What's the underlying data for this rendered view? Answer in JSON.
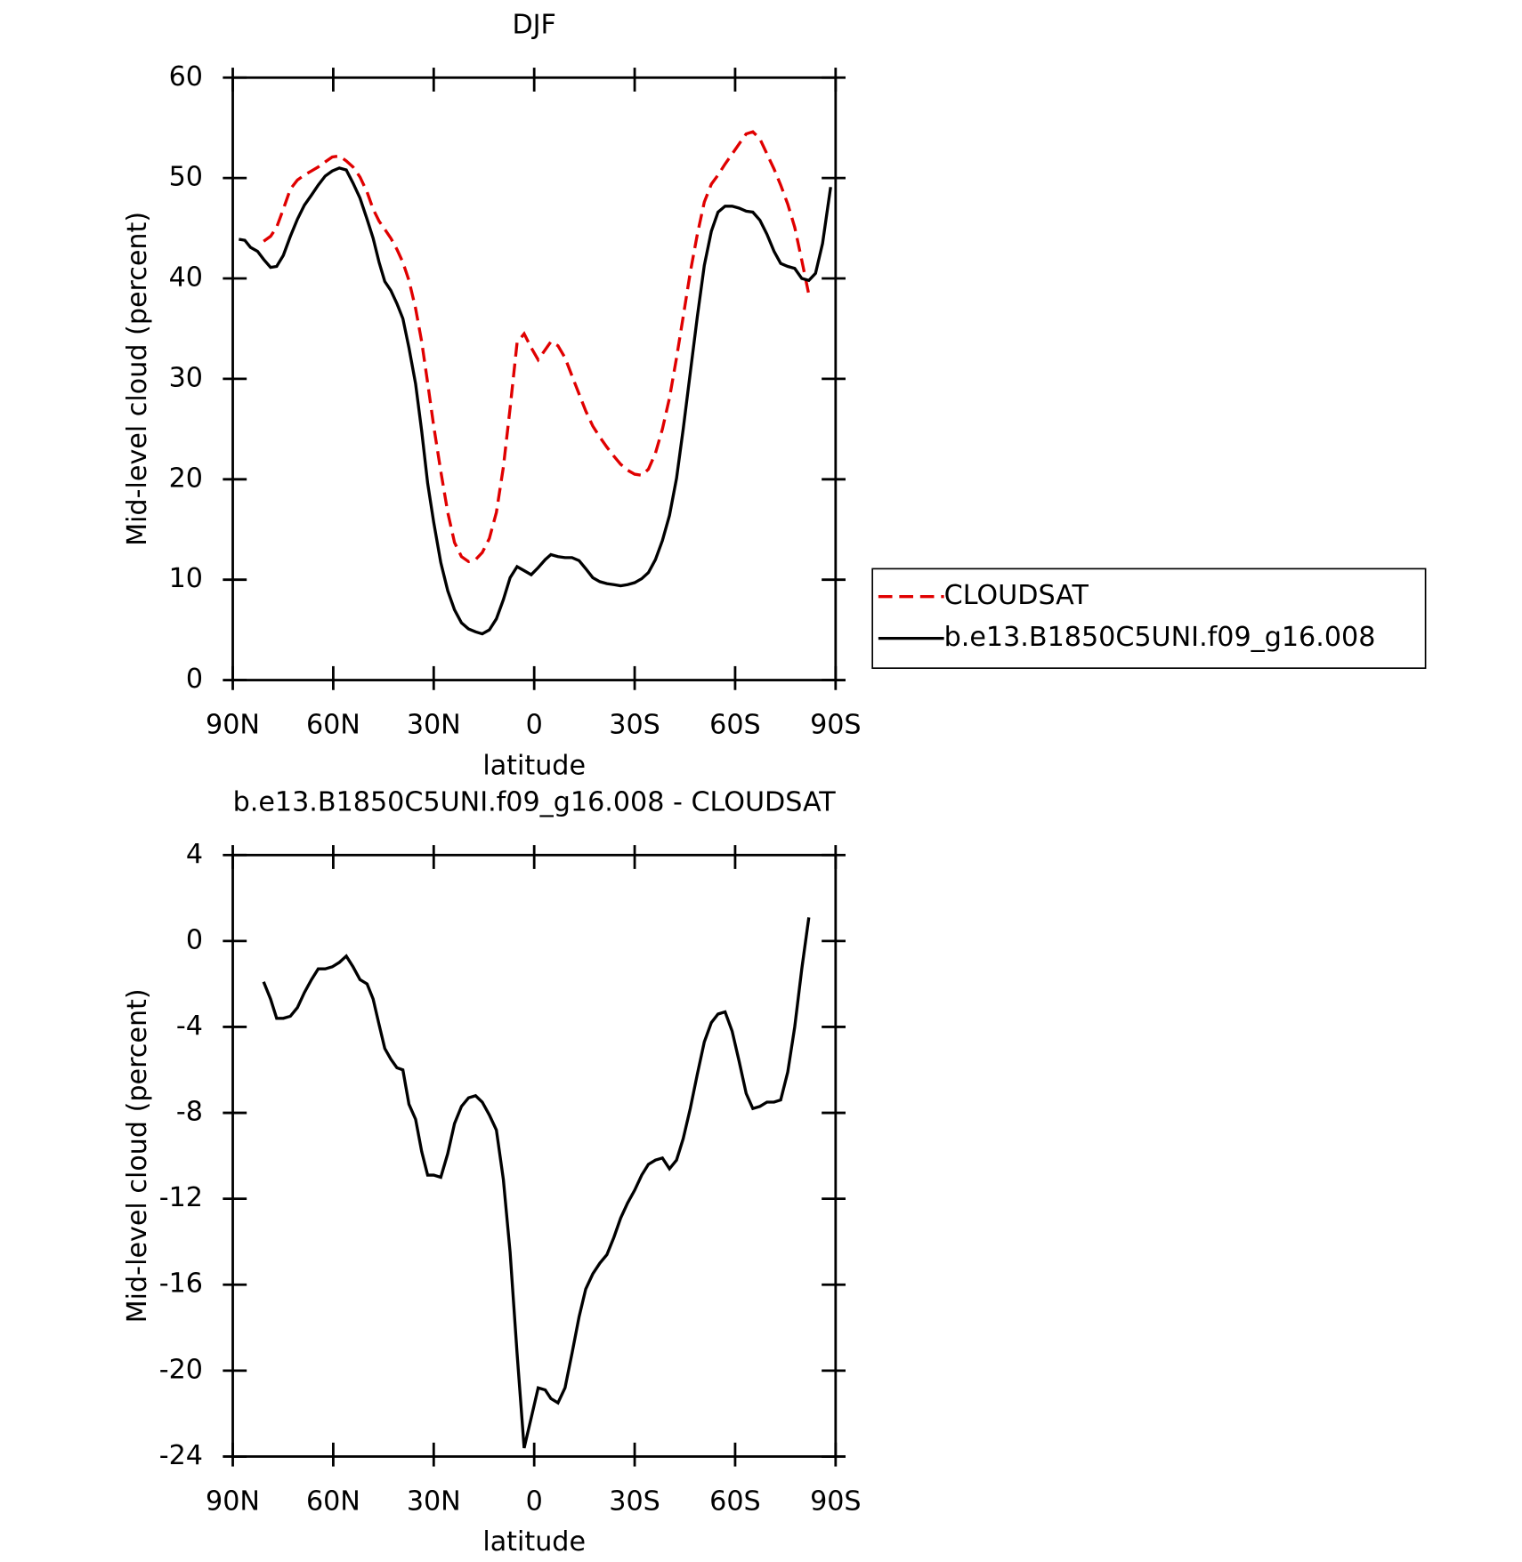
{
  "chart_data": [
    {
      "type": "line",
      "title": "DJF",
      "xlabel": "latitude",
      "ylabel": "Mid-level cloud (percent)",
      "x": [
        88.2,
        86.4,
        84.7,
        82.6,
        80.8,
        78.7,
        76.9,
        74.9,
        72.8,
        70.7,
        68.6,
        66.5,
        64.5,
        62.4,
        60.3,
        58.2,
        56.1,
        54.1,
        52.0,
        49.9,
        48.1,
        46.3,
        44.6,
        42.8,
        41.0,
        39.2,
        37.4,
        35.4,
        33.6,
        31.8,
        30.0,
        27.9,
        25.8,
        23.8,
        21.7,
        19.6,
        17.5,
        15.5,
        13.4,
        11.3,
        9.2,
        7.2,
        5.1,
        3.0,
        0.9,
        -1.2,
        -3.3,
        -5.0,
        -7.1,
        -9.2,
        -11.3,
        -13.4,
        -15.4,
        -17.5,
        -19.6,
        -21.7,
        -23.8,
        -25.8,
        -27.9,
        -30.0,
        -32.1,
        -34.1,
        -36.2,
        -38.3,
        -40.4,
        -42.5,
        -44.5,
        -46.6,
        -48.7,
        -50.8,
        -52.9,
        -54.9,
        -57.0,
        -59.1,
        -61.2,
        -63.3,
        -65.3,
        -67.4,
        -69.5,
        -71.6,
        -73.6,
        -75.7,
        -77.8,
        -79.9,
        -82.0,
        -84.0,
        -86.1,
        -88.5
      ],
      "series": [
        {
          "name": "CLOUDSAT",
          "color": "#e00000",
          "dash": true,
          "values": [
            null,
            null,
            null,
            null,
            43.7,
            44.2,
            45.1,
            46.9,
            48.9,
            49.8,
            50.3,
            50.7,
            51.1,
            51.6,
            52.1,
            52.2,
            51.7,
            51.1,
            50.1,
            48.6,
            46.9,
            45.7,
            44.9,
            44.0,
            42.9,
            41.6,
            39.8,
            37.0,
            33.7,
            29.6,
            25.3,
            20.8,
            16.7,
            13.7,
            12.3,
            11.8,
            12.0,
            12.7,
            14.1,
            16.7,
            21.2,
            27.1,
            33.6,
            34.5,
            33.1,
            31.9,
            32.9,
            33.7,
            33.3,
            32.1,
            30.3,
            28.5,
            26.8,
            25.3,
            24.2,
            23.2,
            22.3,
            21.5,
            20.9,
            20.5,
            20.4,
            21.0,
            22.6,
            25.0,
            28.1,
            32.1,
            36.2,
            40.6,
            44.4,
            47.6,
            49.4,
            50.3,
            51.4,
            52.4,
            53.4,
            54.4,
            54.6,
            53.9,
            52.4,
            50.9,
            49.3,
            47.4,
            45.1,
            41.8,
            38.4,
            null,
            null,
            null
          ]
        },
        {
          "name": "b.e13.B1850C5UNI.f09_g16.008",
          "color": "#000000",
          "dash": false,
          "values": [
            43.9,
            43.8,
            43.1,
            42.7,
            41.9,
            41.1,
            41.2,
            42.3,
            44.2,
            45.9,
            47.3,
            48.3,
            49.3,
            50.2,
            50.7,
            51.0,
            50.8,
            49.5,
            48.0,
            45.9,
            44.0,
            41.6,
            39.7,
            38.8,
            37.5,
            36.0,
            33.1,
            29.5,
            24.8,
            19.6,
            15.7,
            11.7,
            8.9,
            7.0,
            5.7,
            5.1,
            4.8,
            4.6,
            5.0,
            6.1,
            8.0,
            10.2,
            11.3,
            10.9,
            10.5,
            11.2,
            12.0,
            12.5,
            12.3,
            12.2,
            12.2,
            11.9,
            11.1,
            10.2,
            9.8,
            9.6,
            9.5,
            9.4,
            9.5,
            9.7,
            10.1,
            10.7,
            12.0,
            13.9,
            16.4,
            20.1,
            25.0,
            30.6,
            36.2,
            41.3,
            44.7,
            46.6,
            47.2,
            47.2,
            47.0,
            46.7,
            46.6,
            45.8,
            44.4,
            42.7,
            41.5,
            41.2,
            41.0,
            40.0,
            39.8,
            40.5,
            43.5,
            49.1
          ]
        }
      ],
      "xlim": [
        90,
        -90
      ],
      "xticks": [
        {
          "value": 90,
          "label": "90N"
        },
        {
          "value": 60,
          "label": "60N"
        },
        {
          "value": 30,
          "label": "30N"
        },
        0,
        {
          "value": -30,
          "label": "30S"
        },
        {
          "value": -60,
          "label": "60S"
        },
        {
          "value": -90,
          "label": "90S"
        }
      ],
      "ylim": [
        0,
        60
      ],
      "yticks": [
        0,
        10,
        20,
        30,
        40,
        50,
        60
      ],
      "legend": "outside-right"
    },
    {
      "type": "line",
      "title": "b.e13.B1850C5UNI.f09_g16.008 - CLOUDSAT",
      "xlabel": "latitude",
      "ylabel": "Mid-level cloud (percent)",
      "x": [
        80.8,
        78.7,
        76.9,
        74.9,
        72.8,
        70.7,
        68.6,
        66.5,
        64.5,
        62.4,
        60.3,
        58.2,
        56.1,
        54.1,
        52.0,
        49.9,
        48.1,
        46.3,
        44.6,
        42.8,
        41.0,
        39.2,
        37.4,
        35.4,
        33.6,
        31.8,
        30.0,
        27.9,
        25.8,
        23.8,
        21.7,
        19.6,
        17.5,
        15.5,
        13.4,
        11.3,
        9.2,
        7.2,
        5.1,
        3.0,
        0.9,
        -1.2,
        -3.3,
        -5.0,
        -7.1,
        -9.2,
        -11.3,
        -13.4,
        -15.4,
        -17.5,
        -19.6,
        -21.7,
        -23.8,
        -25.8,
        -27.9,
        -30.0,
        -32.1,
        -34.1,
        -36.2,
        -38.3,
        -40.4,
        -42.5,
        -44.5,
        -46.6,
        -48.7,
        -50.8,
        -52.9,
        -54.9,
        -57.0,
        -59.1,
        -61.2,
        -63.3,
        -65.3,
        -67.4,
        -69.5,
        -71.6,
        -73.6,
        -75.7,
        -77.8,
        -79.9,
        -82.0
      ],
      "series": [
        {
          "color": "#000000",
          "dash": false,
          "values": [
            -1.9,
            -2.7,
            -3.6,
            -3.6,
            -3.5,
            -3.1,
            -2.4,
            -1.8,
            -1.3,
            -1.3,
            -1.2,
            -1.0,
            -0.7,
            -1.2,
            -1.8,
            -2.0,
            -2.7,
            -3.9,
            -5.0,
            -5.5,
            -5.9,
            -6.0,
            -7.6,
            -8.3,
            -9.8,
            -10.9,
            -10.9,
            -11.0,
            -9.9,
            -8.5,
            -7.7,
            -7.3,
            -7.2,
            -7.5,
            -8.1,
            -8.8,
            -11.1,
            -14.5,
            -19.2,
            -23.6,
            -22.2,
            -20.8,
            -20.9,
            -21.3,
            -21.5,
            -20.8,
            -19.2,
            -17.5,
            -16.2,
            -15.5,
            -15.0,
            -14.6,
            -13.8,
            -12.9,
            -12.2,
            -11.6,
            -10.9,
            -10.4,
            -10.2,
            -10.1,
            -10.6,
            -10.2,
            -9.2,
            -7.8,
            -6.2,
            -4.7,
            -3.8,
            -3.4,
            -3.3,
            -4.2,
            -5.6,
            -7.1,
            -7.8,
            -7.7,
            -7.5,
            -7.5,
            -7.4,
            -6.1,
            -4.0,
            -1.3,
            1.1
          ]
        }
      ],
      "xlim": [
        90,
        -90
      ],
      "xticks": [
        {
          "value": 90,
          "label": "90N"
        },
        {
          "value": 60,
          "label": "60N"
        },
        {
          "value": 30,
          "label": "30N"
        },
        0,
        {
          "value": -30,
          "label": "30S"
        },
        {
          "value": -60,
          "label": "60S"
        },
        {
          "value": -90,
          "label": "90S"
        }
      ],
      "ylim": [
        -24,
        4
      ],
      "yticks": [
        -24,
        -20,
        -16,
        -12,
        -8,
        -4,
        0,
        4
      ]
    }
  ]
}
